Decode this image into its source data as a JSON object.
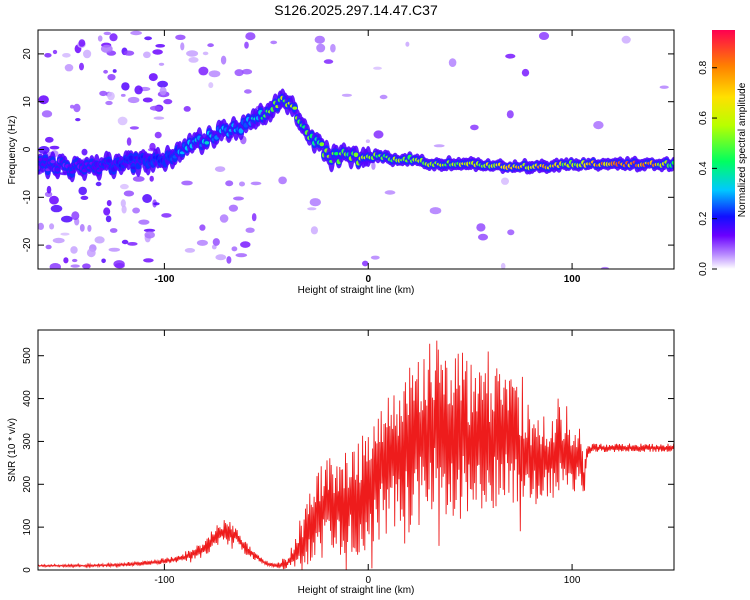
{
  "title": "S126.2025.297.14.47.C37",
  "colors": {
    "snr_line": "#ee1c1c",
    "axis": "#000000"
  },
  "chart_data": [
    {
      "type": "heatmap",
      "name": "spectrogram",
      "xlabel": "Height of straight line (km)",
      "ylabel": "Frequency (Hz)",
      "xlim": [
        -162,
        150
      ],
      "ylim": [
        -25,
        25
      ],
      "xticks": [
        -100,
        0,
        100
      ],
      "xtick_labels": [
        "-100",
        "0",
        "100"
      ],
      "yticks": [
        20,
        10,
        0,
        -10,
        -20
      ],
      "ytick_labels": [
        "20",
        "10",
        "0",
        "-10",
        "-20"
      ],
      "ridge": {
        "x": [
          -160,
          -140,
          -120,
          -100,
          -90,
          -80,
          -70,
          -60,
          -55,
          -50,
          -45,
          -42,
          -38,
          -35,
          -30,
          -25,
          -20,
          -15,
          -10,
          -5,
          0,
          5,
          10,
          15,
          20,
          30,
          40,
          50,
          60,
          70,
          80,
          90,
          100,
          103,
          110,
          120,
          130,
          140,
          148
        ],
        "freq": [
          -3,
          -4,
          -3,
          -2,
          0,
          2,
          4,
          5,
          6,
          8,
          9,
          10,
          9,
          7,
          4,
          1,
          -1,
          -2,
          -1,
          -2,
          -2,
          -1,
          -2,
          -2,
          -2,
          -3,
          -3,
          -3,
          -3.5,
          -3.5,
          -3.5,
          -3.5,
          -3,
          -3,
          -3,
          -3,
          -3,
          -3,
          -3
        ],
        "amplitude": [
          0.15,
          0.15,
          0.2,
          0.25,
          0.3,
          0.35,
          0.3,
          0.3,
          0.35,
          0.5,
          0.6,
          0.65,
          0.6,
          0.55,
          0.5,
          0.5,
          0.55,
          0.55,
          0.5,
          0.6,
          0.6,
          0.55,
          0.6,
          0.6,
          0.55,
          0.55,
          0.6,
          0.65,
          0.65,
          0.7,
          0.75,
          0.75,
          0.55,
          0.65,
          0.8,
          0.85,
          0.85,
          0.8,
          0.5
        ]
      },
      "colorbar": {
        "label": "Normalized spectral amplitude",
        "ticks": [
          0.0,
          0.2,
          0.4,
          0.6,
          0.8
        ],
        "tick_labels": [
          "0.0",
          "0.2",
          "0.4",
          "0.6",
          "0.8"
        ],
        "range": [
          0,
          0.95
        ]
      }
    },
    {
      "type": "line",
      "name": "snr",
      "xlabel": "Height of straight line (km)",
      "ylabel": "SNR (10 * v/v)",
      "xlim": [
        -162,
        150
      ],
      "ylim": [
        0,
        560
      ],
      "xticks": [
        -100,
        0,
        100
      ],
      "xtick_labels": [
        "-100",
        "0",
        "100"
      ],
      "yticks": [
        0,
        100,
        200,
        300,
        400,
        500
      ],
      "ytick_labels": [
        "0",
        "100",
        "200",
        "300",
        "400",
        "500"
      ],
      "series": [
        {
          "name": "SNR",
          "x": [
            -162,
            -140,
            -120,
            -100,
            -90,
            -80,
            -75,
            -70,
            -65,
            -60,
            -55,
            -50,
            -45,
            -40,
            -35,
            -30,
            -25,
            -20,
            -15,
            -10,
            -5,
            0,
            5,
            10,
            15,
            20,
            25,
            30,
            35,
            40,
            45,
            50,
            55,
            60,
            65,
            70,
            75,
            80,
            85,
            90,
            95,
            100,
            105,
            106,
            107,
            108,
            110,
            120,
            130,
            140,
            150
          ],
          "y": [
            10,
            10,
            12,
            20,
            30,
            50,
            80,
            90,
            80,
            50,
            30,
            15,
            10,
            15,
            40,
            80,
            130,
            160,
            140,
            150,
            170,
            200,
            230,
            250,
            260,
            280,
            310,
            330,
            340,
            330,
            320,
            300,
            290,
            300,
            310,
            300,
            280,
            260,
            260,
            270,
            270,
            260,
            250,
            200,
            270,
            280,
            285,
            285,
            285,
            285,
            285
          ],
          "spread": [
            2,
            3,
            4,
            6,
            10,
            20,
            30,
            30,
            25,
            15,
            8,
            5,
            5,
            15,
            40,
            80,
            100,
            110,
            110,
            120,
            140,
            150,
            160,
            170,
            180,
            200,
            210,
            220,
            220,
            210,
            200,
            180,
            170,
            170,
            160,
            150,
            140,
            120,
            110,
            100,
            90,
            80,
            60,
            40,
            20,
            10,
            10,
            10,
            10,
            10,
            10
          ]
        }
      ]
    }
  ]
}
